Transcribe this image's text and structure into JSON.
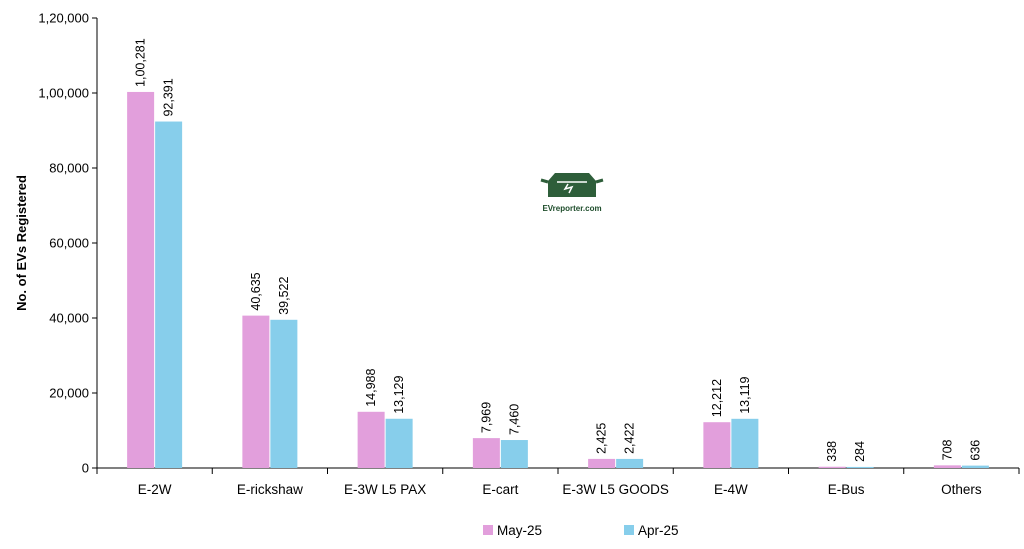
{
  "chart_data": {
    "type": "bar",
    "categories": [
      "E-2W",
      "E-rickshaw",
      "E-3W L5 PAX",
      "E-cart",
      "E-3W L5 GOODS",
      "E-4W",
      "E-Bus",
      "Others"
    ],
    "series": [
      {
        "name": "May-25",
        "color": "#e29fdc",
        "values": [
          100281,
          40635,
          14988,
          7969,
          2425,
          12212,
          338,
          708
        ],
        "labels": [
          "1,00,281",
          "40,635",
          "14,988",
          "7,969",
          "2,425",
          "12,212",
          "338",
          "708"
        ]
      },
      {
        "name": "Apr-25",
        "color": "#87ceeb",
        "values": [
          92391,
          39522,
          13129,
          7460,
          2422,
          13119,
          284,
          636
        ],
        "labels": [
          "92,391",
          "39,522",
          "13,129",
          "7,460",
          "2,422",
          "13,119",
          "284",
          "636"
        ]
      }
    ],
    "ylabel": "No. of EVs Registered",
    "xlabel": "",
    "ylim": [
      0,
      120000
    ],
    "yticks": [
      0,
      20000,
      40000,
      60000,
      80000,
      100000,
      120000
    ],
    "ytick_labels": [
      "0",
      "20,000",
      "40,000",
      "60,000",
      "80,000",
      "1,00,000",
      "1,20,000"
    ],
    "grid": false,
    "legend_position": "bottom"
  },
  "watermark": {
    "text": "EVreporter.com",
    "icon": "car-charging-logo-icon",
    "color": "#2e5e3a"
  }
}
